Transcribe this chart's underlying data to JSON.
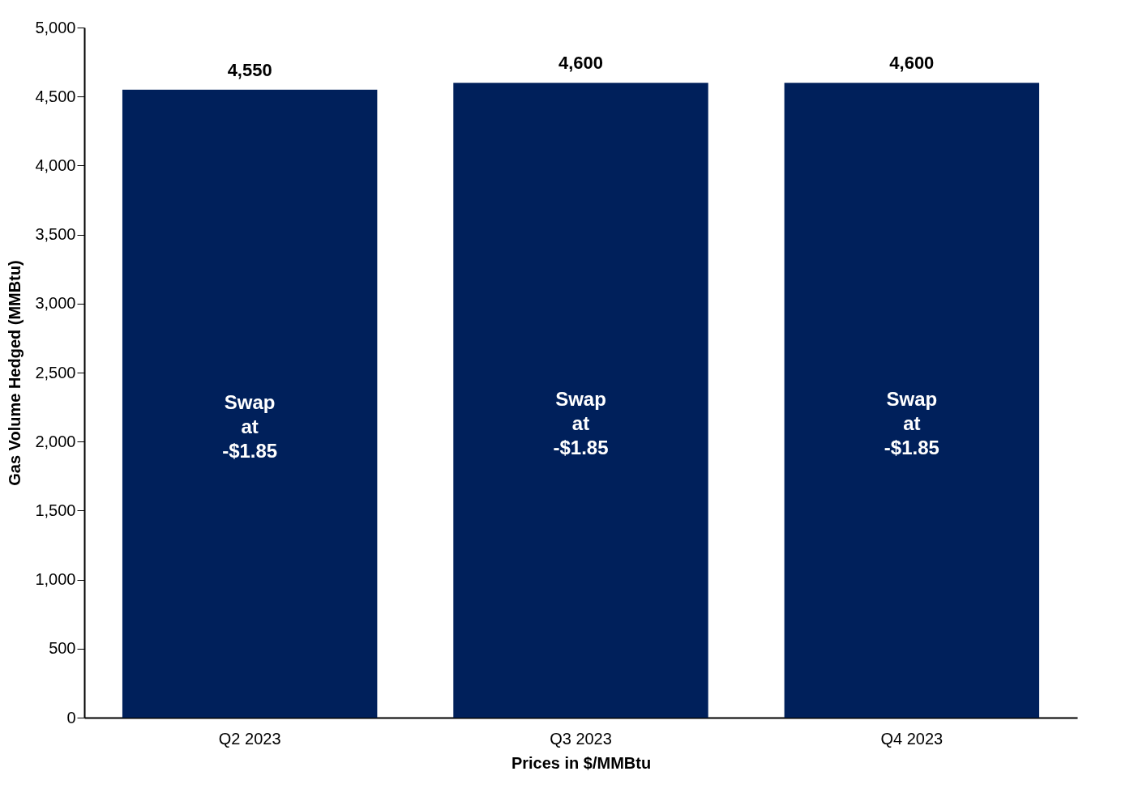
{
  "chart_data": {
    "type": "bar",
    "xlabel": "Prices in $/MMBtu",
    "ylabel": "Gas Volume Hedged (MMBtu)",
    "categories": [
      "Q2 2023",
      "Q3 2023",
      "Q4 2023"
    ],
    "values": [
      4550,
      4600,
      4600
    ],
    "color": "#00205b",
    "value_labels": [
      "4,550",
      "4,600",
      "4,600"
    ],
    "ylim": [
      0,
      5000
    ],
    "yticks": [
      {
        "value": 0,
        "label": "0"
      },
      {
        "value": 500,
        "label": "500"
      },
      {
        "value": 1000,
        "label": "1,000"
      },
      {
        "value": 1500,
        "label": "1,500"
      },
      {
        "value": 2000,
        "label": "2,000"
      },
      {
        "value": 2500,
        "label": "2,500"
      },
      {
        "value": 3000,
        "label": "3,000"
      },
      {
        "value": 3500,
        "label": "3,500"
      },
      {
        "value": 4000,
        "label": "4,000"
      },
      {
        "value": 4500,
        "label": "4,500"
      },
      {
        "value": 5000,
        "label": "5,000"
      }
    ],
    "annotations": [
      "Swap\nat\n-$1.85",
      "Swap\nat\n-$1.85",
      "Swap\nat\n-$1.85"
    ],
    "grid": false
  }
}
